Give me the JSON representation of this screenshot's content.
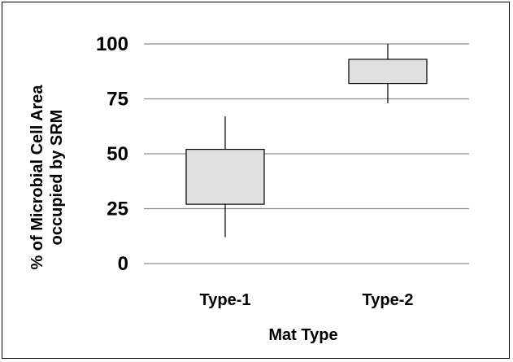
{
  "chart_data": {
    "type": "box",
    "categories": [
      "Type-1",
      "Type-2"
    ],
    "boxes": [
      {
        "category": "Type-1",
        "whisker_low": 12,
        "q1": 27,
        "q3": 52,
        "whisker_high": 67
      },
      {
        "category": "Type-2",
        "whisker_low": 73,
        "q1": 82,
        "q3": 93,
        "whisker_high": 100
      }
    ],
    "ylim": [
      0,
      100
    ],
    "yticks": [
      0,
      25,
      50,
      75,
      100
    ],
    "ytick_labels": [
      "0",
      "25",
      "50",
      "75",
      "100"
    ],
    "xlabel": "Mat Type",
    "ylabel_line1": "% of Microbial Cell Area",
    "ylabel_line2": "occupied by SRM",
    "grid": "horizontal",
    "colors": {
      "box_fill": "#e0e0e0",
      "box_stroke": "#000000",
      "grid": "#8c8c8c",
      "whisker": "#000000"
    }
  }
}
